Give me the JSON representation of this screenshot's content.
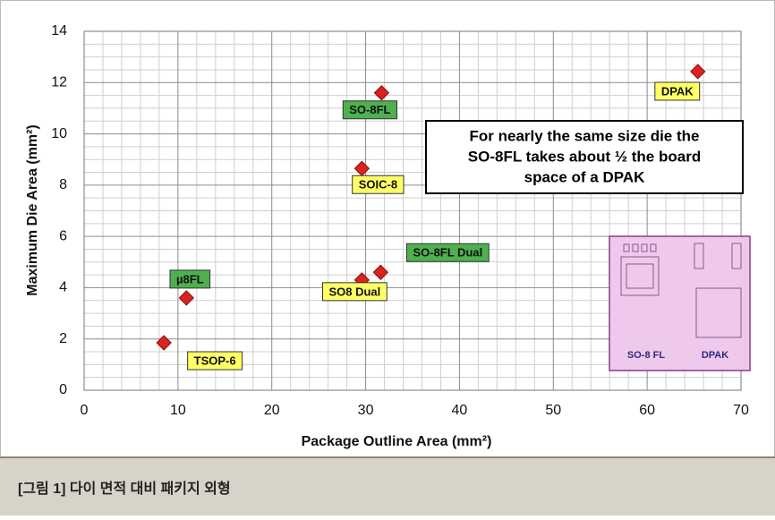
{
  "chart_data": {
    "type": "scatter",
    "x_label": "Package Outline Area (mm²)",
    "y_label": "Maximum Die Area (mm²)",
    "xlim": [
      0,
      70
    ],
    "xticks": [
      0,
      10,
      20,
      30,
      40,
      50,
      60,
      70
    ],
    "ylim": [
      0,
      14
    ],
    "yticks": [
      0,
      2,
      4,
      6,
      8,
      10,
      12,
      14
    ],
    "grid": true,
    "marker_color": "#d9231f",
    "x": [
      8.5,
      10.9,
      29.6,
      31.6,
      29.6,
      31.7,
      65.4
    ],
    "values": [
      1.85,
      3.6,
      4.3,
      4.6,
      8.65,
      11.6,
      12.43
    ],
    "point_labels": [
      "TSOP-6",
      "µ8FL",
      "SO8 Dual",
      "SO-8FL Dual",
      "SOIC-8",
      "SO-8FL",
      "DPAK"
    ],
    "label_colors": [
      "#ffff66",
      "#4fb050",
      "#ffff66",
      "#4fb050",
      "#ffff66",
      "#4fb050",
      "#ffff66"
    ],
    "annotation": [
      "For nearly the same size die the",
      "SO-8FL takes about ½ the board",
      "space of a DPAK"
    ],
    "inset_labels": [
      "SO-8 FL",
      "DPAK"
    ]
  },
  "caption": "[그림 1] 다이 면적 대비 패키지 외형"
}
